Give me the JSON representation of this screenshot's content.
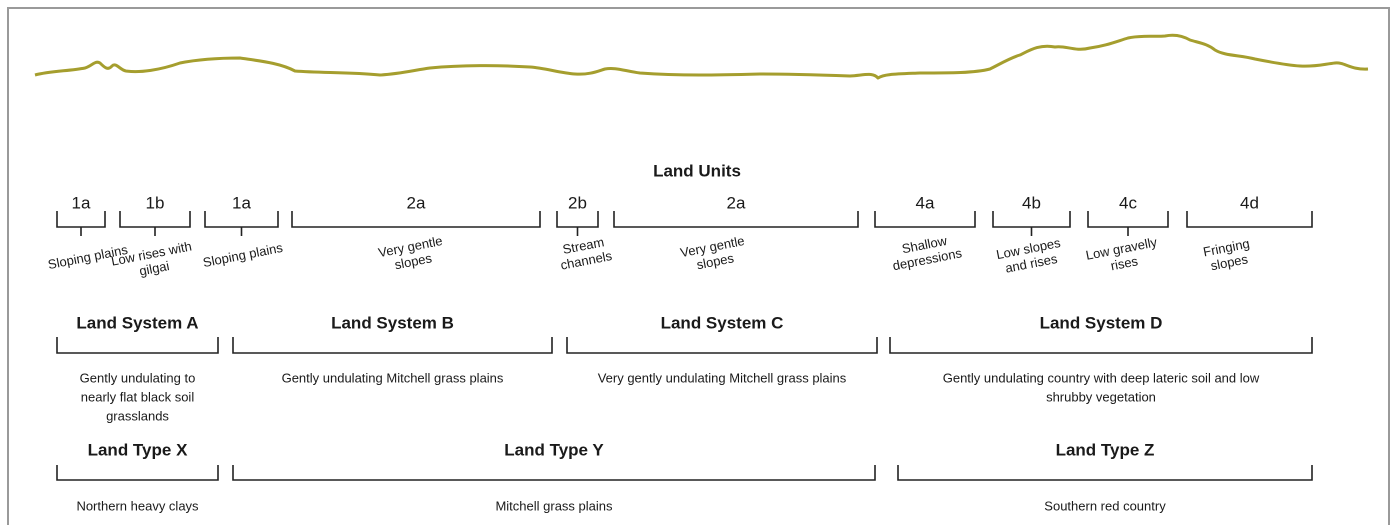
{
  "title": "Land Units",
  "land_units": [
    {
      "code": "1a",
      "label": [
        "Sloping plains"
      ]
    },
    {
      "code": "1b",
      "label": [
        "Low rises with",
        "gilgai"
      ]
    },
    {
      "code": "1a",
      "label": [
        "Sloping plains"
      ]
    },
    {
      "code": "2a",
      "label": [
        "Very gentle",
        "slopes"
      ]
    },
    {
      "code": "2b",
      "label": [
        "Stream",
        "channels"
      ]
    },
    {
      "code": "2a",
      "label": [
        "Very gentle",
        "slopes"
      ]
    },
    {
      "code": "4a",
      "label": [
        "Shallow",
        "depressions"
      ]
    },
    {
      "code": "4b",
      "label": [
        "Low slopes",
        "and rises"
      ]
    },
    {
      "code": "4c",
      "label": [
        "Low gravelly",
        "rises"
      ]
    },
    {
      "code": "4d",
      "label": [
        "Fringing",
        "slopes"
      ]
    }
  ],
  "land_systems": [
    {
      "name": "Land System A",
      "description": [
        "Gently undulating to",
        "nearly flat black soil",
        "grasslands"
      ]
    },
    {
      "name": "Land System B",
      "description": [
        "Gently undulating Mitchell grass plains"
      ]
    },
    {
      "name": "Land System C",
      "description": [
        "Very gently undulating Mitchell grass plains"
      ]
    },
    {
      "name": "Land System D",
      "description": [
        "Gently undulating country with deep lateric soil and low",
        "shrubby vegetation"
      ]
    }
  ],
  "land_types": [
    {
      "name": "Land Type X",
      "description": [
        "Northern heavy clays"
      ]
    },
    {
      "name": "Land Type Y",
      "description": [
        "Mitchell grass plains"
      ]
    },
    {
      "name": "Land Type Z",
      "description": [
        "Southern red country"
      ]
    }
  ]
}
